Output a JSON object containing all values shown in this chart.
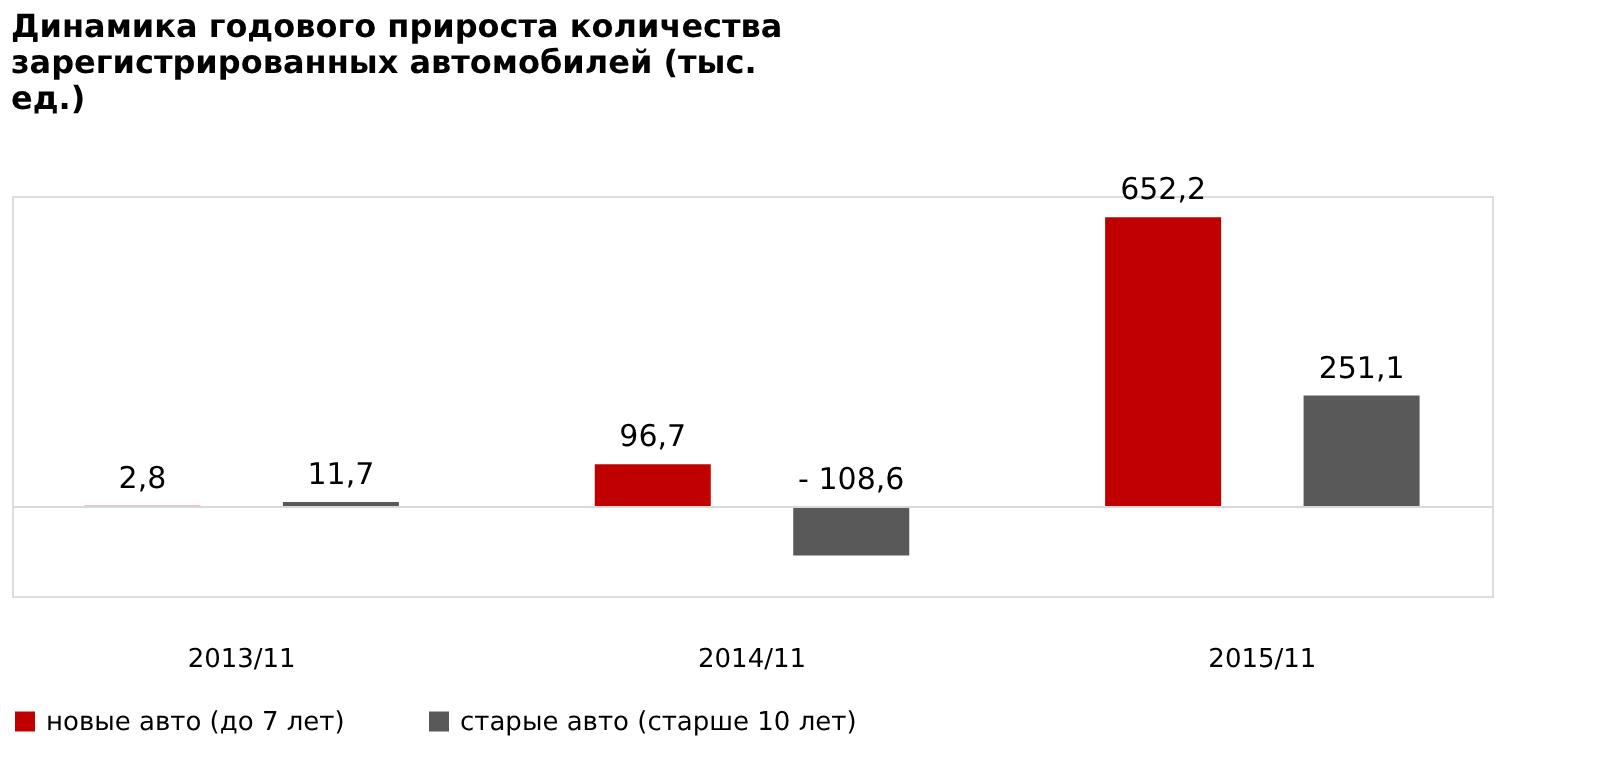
{
  "chart_data": {
    "type": "bar",
    "title": "Динамика годового прироста количества зарегистрированных автомобилей (тыс. ед.)",
    "categories": [
      "2013/11",
      "2014/11",
      "2015/11"
    ],
    "series": [
      {
        "name": "новые авто (до 7 лет)",
        "color": "#c00000",
        "values": [
          2.8,
          96.7,
          652.2
        ],
        "value_labels": [
          "2,8",
          "96,7",
          "652,2"
        ]
      },
      {
        "name": "старые авто (старше 10 лет)",
        "color": "#595959",
        "values": [
          11.7,
          -108.6,
          251.1
        ],
        "value_labels": [
          "11,7",
          "- 108,6",
          "251,1"
        ]
      }
    ],
    "legend": "bottom",
    "grid": false
  }
}
